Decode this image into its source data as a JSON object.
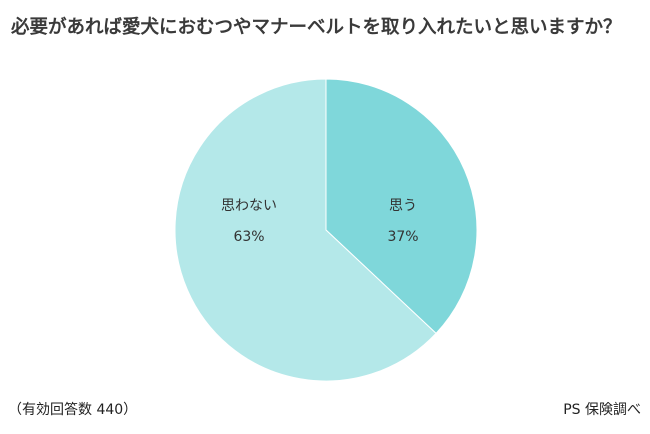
{
  "chart_data": {
    "type": "pie",
    "title": "必要があれば愛犬におむつやマナーベルトを取り入れたいと思いますか？",
    "unit": "%",
    "slices": [
      {
        "label": "思う",
        "value": 37,
        "color": "#7fd7da"
      },
      {
        "label": "思わない",
        "value": 63,
        "color": "#b4e8e9"
      }
    ]
  },
  "footer": {
    "note": "（有効回答数 440）",
    "source": "PS 保険調べ"
  }
}
